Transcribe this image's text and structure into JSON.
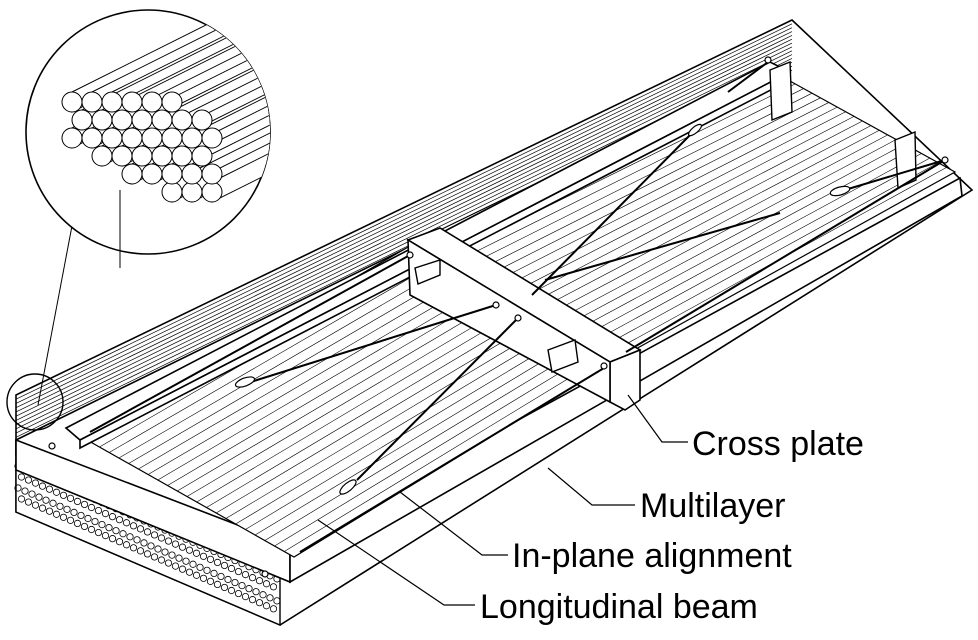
{
  "labels": {
    "cross_plate": "Cross plate",
    "multilayer": "Multilayer",
    "in_plane_alignment": "In-plane alignment",
    "longitudinal_beam": "Longitudinal beam"
  },
  "colors": {
    "line": "#000000",
    "background": "#ffffff"
  }
}
